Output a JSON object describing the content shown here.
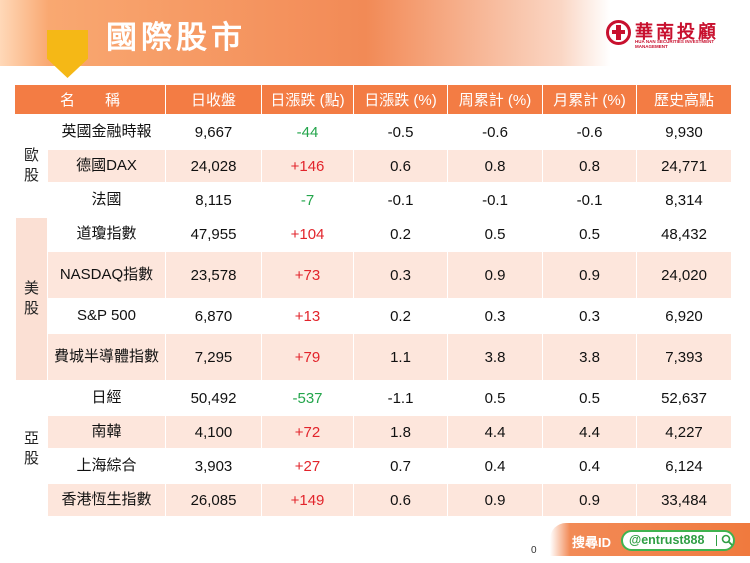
{
  "header": {
    "title": "國際股市"
  },
  "logo": {
    "name": "華南投顧",
    "sub": "HUA NAN SECURITIES INVESTMENT MANAGEMENT"
  },
  "table": {
    "columns": [
      "名　　稱",
      "日收盤",
      "日漲跌 (點)",
      "日漲跌 (%)",
      "周累計 (%)",
      "月累計 (%)",
      "歷史高點"
    ],
    "regions": [
      {
        "label": "歐\n股",
        "rows": [
          {
            "name": "英國金融時報",
            "close": "9,667",
            "chg": "-44",
            "dir": "down",
            "pct": "-0.5",
            "wk": "-0.6",
            "mo": "-0.6",
            "high": "9,930"
          },
          {
            "name": "德國DAX",
            "close": "24,028",
            "chg": "+146",
            "dir": "up",
            "pct": "0.6",
            "wk": "0.8",
            "mo": "0.8",
            "high": "24,771"
          },
          {
            "name": "法國",
            "close": "8,115",
            "chg": "-7",
            "dir": "down",
            "pct": "-0.1",
            "wk": "-0.1",
            "mo": "-0.1",
            "high": "8,314"
          }
        ]
      },
      {
        "label": "美\n股",
        "rows": [
          {
            "name": "道瓊指數",
            "close": "47,955",
            "chg": "+104",
            "dir": "up",
            "pct": "0.2",
            "wk": "0.5",
            "mo": "0.5",
            "high": "48,432"
          },
          {
            "name": "NASDAQ指數",
            "close": "23,578",
            "chg": "+73",
            "dir": "up",
            "pct": "0.3",
            "wk": "0.9",
            "mo": "0.9",
            "high": "24,020"
          },
          {
            "name": "S&P 500",
            "close": "6,870",
            "chg": "+13",
            "dir": "up",
            "pct": "0.2",
            "wk": "0.3",
            "mo": "0.3",
            "high": "6,920"
          },
          {
            "name": "費城半導體指數",
            "close": "7,295",
            "chg": "+79",
            "dir": "up",
            "pct": "1.1",
            "wk": "3.8",
            "mo": "3.8",
            "high": "7,393"
          }
        ]
      },
      {
        "label": "亞\n股",
        "rows": [
          {
            "name": "日經",
            "close": "50,492",
            "chg": "-537",
            "dir": "down",
            "pct": "-1.1",
            "wk": "0.5",
            "mo": "0.5",
            "high": "52,637"
          },
          {
            "name": "南韓",
            "close": "4,100",
            "chg": "+72",
            "dir": "up",
            "pct": "1.8",
            "wk": "4.4",
            "mo": "4.4",
            "high": "4,227"
          },
          {
            "name": "上海綜合",
            "close": "3,903",
            "chg": "+27",
            "dir": "up",
            "pct": "0.7",
            "wk": "0.4",
            "mo": "0.4",
            "high": "6,124"
          },
          {
            "name": "香港恆生指數",
            "close": "26,085",
            "chg": "+149",
            "dir": "up",
            "pct": "0.6",
            "wk": "0.9",
            "mo": "0.9",
            "high": "33,484"
          }
        ]
      }
    ]
  },
  "footer": {
    "search_label": "搜尋ID",
    "search_handle": "@entrust888",
    "page_number": "0"
  },
  "colors": {
    "header_orange": "#f37c44",
    "up": "#e2242b",
    "down": "#23a54b",
    "brand_red": "#c8102e"
  }
}
